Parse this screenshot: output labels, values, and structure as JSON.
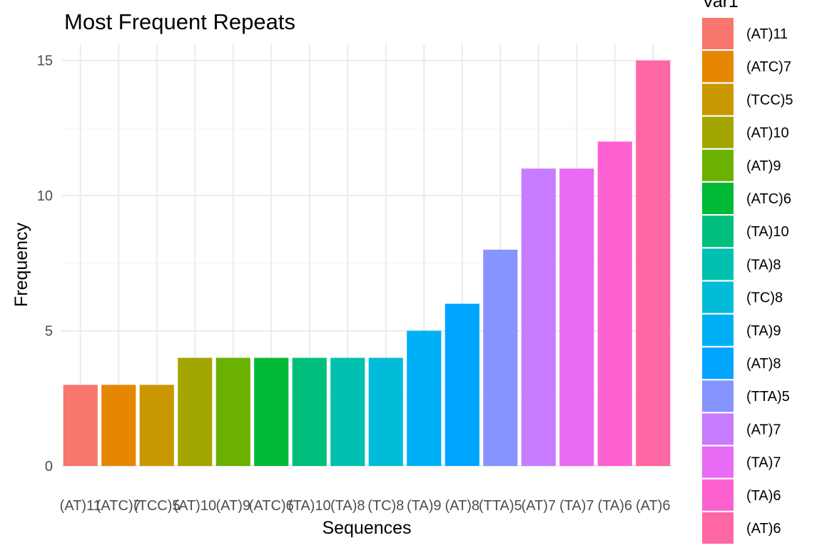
{
  "chart_data": {
    "type": "bar",
    "title": "Most Frequent Repeats",
    "xlabel": "Sequences",
    "ylabel": "Frequency",
    "ylim": [
      0,
      15.6
    ],
    "yticks": [
      0,
      5,
      10,
      15
    ],
    "grid": true,
    "legend_title": "Var1",
    "legend_position": "right",
    "categories": [
      "(AT)11",
      "(ATC)7",
      "(TCC)5",
      "(AT)10",
      "(AT)9",
      "(ATC)6",
      "(TA)10",
      "(TA)8",
      "(TC)8",
      "(TA)9",
      "(AT)8",
      "(TTA)5",
      "(AT)7",
      "(TA)7",
      "(TA)6",
      "(AT)6"
    ],
    "values": [
      3,
      3,
      3,
      4,
      4,
      4,
      4,
      4,
      4,
      5,
      6,
      8,
      11,
      11,
      12,
      15
    ],
    "colors": [
      "#F8766D",
      "#E58700",
      "#C99800",
      "#A3A500",
      "#6BB100",
      "#00BA38",
      "#00BF7D",
      "#00C0AF",
      "#00BCD8",
      "#00B0F6",
      "#00A5FF",
      "#8794FF",
      "#C77CFF",
      "#E76BF3",
      "#FD61D1",
      "#FF67A4"
    ]
  }
}
